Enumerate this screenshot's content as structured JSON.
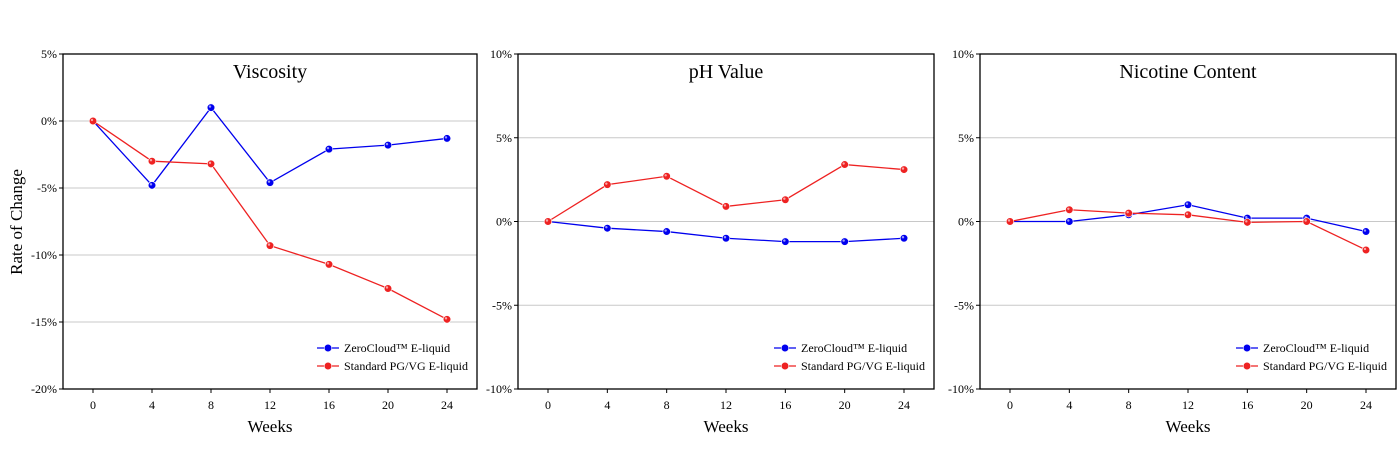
{
  "figure": {
    "ylabel": "Rate of Change"
  },
  "legend": {
    "series_names": [
      "ZeroCloud™ E-liquid",
      "Standard PG/VG E-liquid"
    ],
    "colors": [
      "#0000ee",
      "#ee2222"
    ],
    "placement": "bottom-right"
  },
  "chart_data": [
    {
      "type": "line",
      "title": "Viscosity",
      "xlabel": "Weeks",
      "ylabel": "Rate of Change",
      "x": [
        0,
        4,
        8,
        12,
        16,
        20,
        24
      ],
      "xticks": [
        "0",
        "4",
        "8",
        "12",
        "16",
        "20",
        "24"
      ],
      "ylim": [
        -20,
        5
      ],
      "yticks": [
        5,
        0,
        -5,
        -10,
        -15,
        -20
      ],
      "ytick_labels": [
        "5%",
        "0%",
        "-5%",
        "-10%",
        "-15%",
        "-20%"
      ],
      "grid": "horizontal",
      "legend": "bottom-right",
      "series": [
        {
          "name": "ZeroCloud™ E-liquid",
          "color": "#0000ee",
          "values": [
            0,
            -4.8,
            1.0,
            -4.6,
            -2.1,
            -1.8,
            -1.3
          ]
        },
        {
          "name": "Standard PG/VG E-liquid",
          "color": "#ee2222",
          "values": [
            0,
            -3.0,
            -3.2,
            -9.3,
            -10.7,
            -12.5,
            -14.8
          ]
        }
      ]
    },
    {
      "type": "line",
      "title": "pH Value",
      "xlabel": "Weeks",
      "ylabel": "",
      "x": [
        0,
        4,
        8,
        12,
        16,
        20,
        24
      ],
      "xticks": [
        "0",
        "4",
        "8",
        "12",
        "16",
        "20",
        "24"
      ],
      "ylim": [
        -10,
        10
      ],
      "yticks": [
        10,
        5,
        0,
        -5,
        -10
      ],
      "ytick_labels": [
        "10%",
        "5%",
        "0%",
        "-5%",
        "-10%"
      ],
      "grid": "horizontal",
      "legend": "bottom-right",
      "series": [
        {
          "name": "ZeroCloud™ E-liquid",
          "color": "#0000ee",
          "values": [
            0,
            -0.4,
            -0.6,
            -1.0,
            -1.2,
            -1.2,
            -1.0
          ]
        },
        {
          "name": "Standard PG/VG E-liquid",
          "color": "#ee2222",
          "values": [
            0,
            2.2,
            2.7,
            0.9,
            1.3,
            3.4,
            3.1
          ]
        }
      ]
    },
    {
      "type": "line",
      "title": "Nicotine Content",
      "xlabel": "Weeks",
      "ylabel": "",
      "x": [
        0,
        4,
        8,
        12,
        16,
        20,
        24
      ],
      "xticks": [
        "0",
        "4",
        "8",
        "12",
        "16",
        "20",
        "24"
      ],
      "ylim": [
        -10,
        10
      ],
      "yticks": [
        10,
        5,
        0,
        -5,
        -10
      ],
      "ytick_labels": [
        "10%",
        "5%",
        "0%",
        "-5%",
        "-10%"
      ],
      "grid": "horizontal",
      "legend": "bottom-right",
      "series": [
        {
          "name": "ZeroCloud™ E-liquid",
          "color": "#0000ee",
          "values": [
            0,
            0,
            0.4,
            1.0,
            0.2,
            0.2,
            -0.6
          ]
        },
        {
          "name": "Standard PG/VG E-liquid",
          "color": "#ee2222",
          "values": [
            0,
            0.7,
            0.5,
            0.4,
            -0.05,
            0,
            -1.7
          ]
        }
      ]
    }
  ]
}
